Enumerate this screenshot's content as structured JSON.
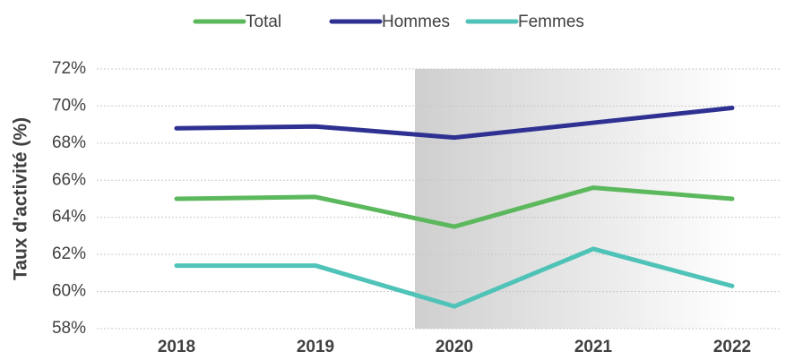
{
  "chart_data": {
    "type": "line",
    "y_label": "Taux d'activité (%)",
    "categories": [
      "2018",
      "2019",
      "2020",
      "2021",
      "2022"
    ],
    "series": [
      {
        "name": "Total",
        "color": "#5cb85c",
        "values": [
          65.0,
          65.1,
          63.5,
          65.6,
          65.0
        ]
      },
      {
        "name": "Hommes",
        "color": "#2e3192",
        "values": [
          68.8,
          68.9,
          68.3,
          69.1,
          69.9
        ]
      },
      {
        "name": "Femmes",
        "color": "#4fc3b8",
        "values": [
          61.4,
          61.4,
          59.2,
          62.3,
          60.3
        ]
      }
    ],
    "ylim": [
      58,
      72
    ],
    "yticks": [
      {
        "value": 58,
        "label": "58%"
      },
      {
        "value": 60,
        "label": "60%"
      },
      {
        "value": 62,
        "label": "62%"
      },
      {
        "value": 64,
        "label": "64%"
      },
      {
        "value": 66,
        "label": "66%"
      },
      {
        "value": 68,
        "label": "68%"
      },
      {
        "value": 70,
        "label": "70%"
      },
      {
        "value": 72,
        "label": "72%"
      }
    ],
    "grid": true,
    "legend": "top"
  }
}
